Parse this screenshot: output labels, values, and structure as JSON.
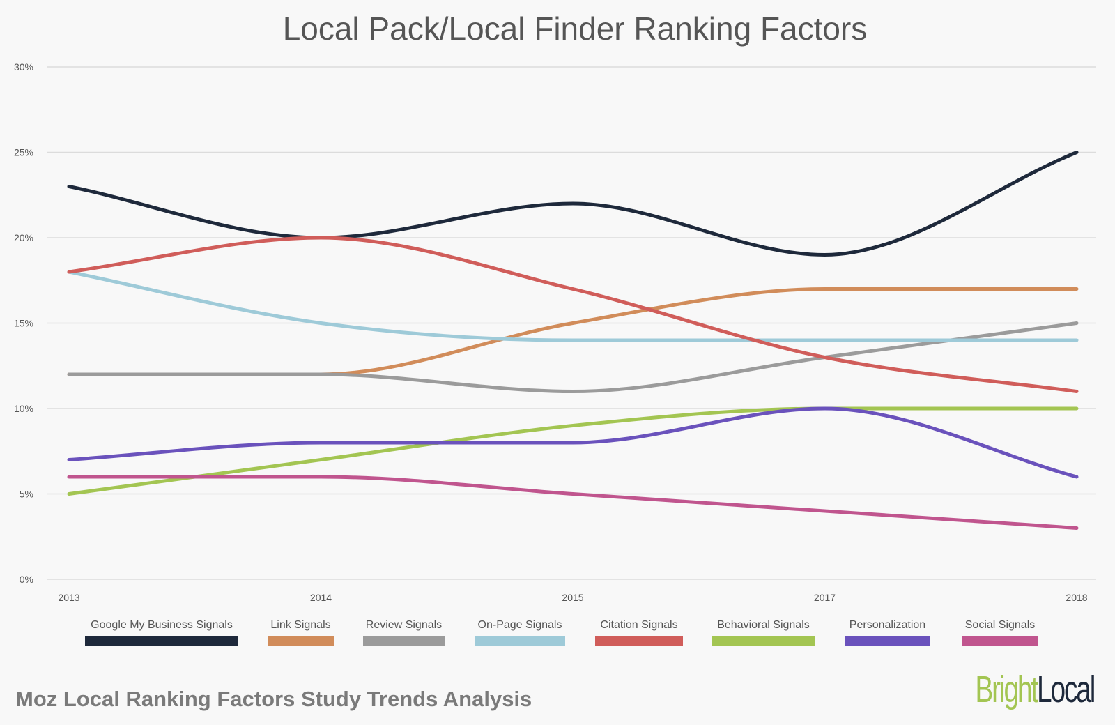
{
  "chart_data": {
    "type": "line",
    "title": "Local Pack/Local Finder Ranking Factors",
    "categories": [
      "2013",
      "2014",
      "2015",
      "2017",
      "2018"
    ],
    "y_ticks": [
      "0%",
      "5%",
      "10%",
      "15%",
      "20%",
      "25%",
      "30%"
    ],
    "ylim": [
      0,
      30
    ],
    "y_unit": "%",
    "grid": true,
    "legend_position": "bottom",
    "series": [
      {
        "name": "Google My Business Signals",
        "color": "#1e293b",
        "values": [
          23,
          20,
          22,
          19,
          25
        ]
      },
      {
        "name": "Link Signals",
        "color": "#d18c5a",
        "values": [
          12,
          12,
          15,
          17,
          17
        ]
      },
      {
        "name": "Review Signals",
        "color": "#9b9b9b",
        "values": [
          12,
          12,
          11,
          13,
          15
        ]
      },
      {
        "name": "On-Page Signals",
        "color": "#9ecad8",
        "values": [
          18,
          15,
          14,
          14,
          14
        ]
      },
      {
        "name": "Citation Signals",
        "color": "#d05d5a",
        "values": [
          18,
          20,
          17,
          13,
          11
        ]
      },
      {
        "name": "Behavioral Signals",
        "color": "#a3c552",
        "values": [
          5,
          7,
          9,
          10,
          10
        ]
      },
      {
        "name": "Personalization",
        "color": "#6a52bc",
        "values": [
          7,
          8,
          8,
          10,
          6
        ]
      },
      {
        "name": "Social Signals",
        "color": "#c0558e",
        "values": [
          6,
          6,
          5,
          4,
          3
        ]
      }
    ]
  },
  "footer": {
    "subtitle": "Moz Local Ranking Factors Study Trends Analysis"
  },
  "logo": {
    "bright": "Bright",
    "local": "Local"
  }
}
